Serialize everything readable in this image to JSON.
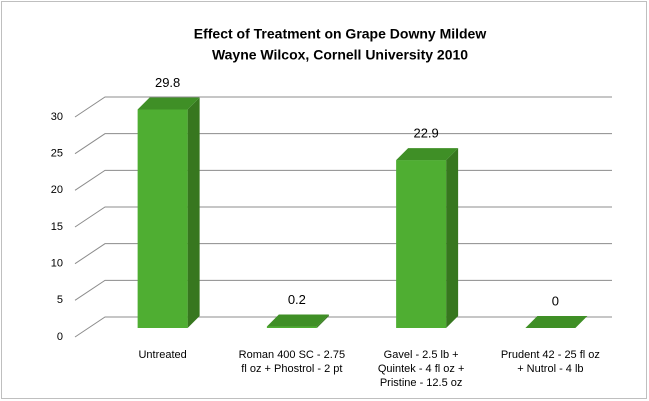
{
  "chart_data": {
    "type": "bar3d",
    "title": "Effect of Treatment on Grape Downy Mildew",
    "subtitle": "Wayne Wilcox, Cornell University 2010",
    "categories": [
      "Untreated",
      "Roman 400 SC - 2.75\nfl oz + Phostrol - 2 pt",
      "Gavel - 2.5 lb +\nQuintek - 4 fl oz +\nPristine - 12.5 oz",
      "Prudent 42 - 25 fl oz\n+ Nutrol - 4 lb"
    ],
    "values": [
      29.8,
      0.2,
      22.9,
      0
    ],
    "color": "#4fae32",
    "ylim": [
      0,
      30
    ],
    "yticks": [
      0,
      5,
      10,
      15,
      20,
      25,
      30
    ],
    "grid": true
  }
}
